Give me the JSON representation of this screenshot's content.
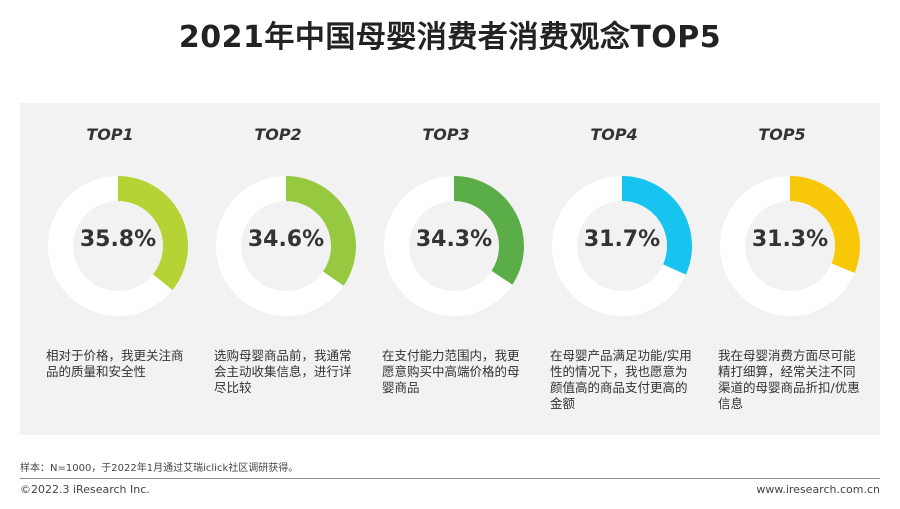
{
  "title": "2021年中国母婴消费者消费观念TOP5",
  "chart_data": {
    "type": "pie",
    "title": "2021年中国母婴消费者消费观念TOP5",
    "items": [
      {
        "rank": "TOP1",
        "value": 35.8,
        "label": "35.8%",
        "color": "#b5d334",
        "description": "相对于价格，我更关注商品的质量和安全性"
      },
      {
        "rank": "TOP2",
        "value": 34.6,
        "label": "34.6%",
        "color": "#96c940",
        "description": "选购母婴商品前，我通常会主动收集信息，进行详尽比较"
      },
      {
        "rank": "TOP3",
        "value": 34.3,
        "label": "34.3%",
        "color": "#5aad47",
        "description": "在支付能力范围内，我更愿意购买中高端价格的母婴商品"
      },
      {
        "rank": "TOP4",
        "value": 31.7,
        "label": "31.7%",
        "color": "#17c4ef",
        "description": "在母婴产品满足功能/实用性的情况下，我也愿意为颜值高的商品支付更高的金额"
      },
      {
        "rank": "TOP5",
        "value": 31.3,
        "label": "31.3%",
        "color": "#f8c808",
        "description": "我在母婴消费方面尽可能精打细算，经常关注不同渠道的母婴商品折扣/优惠信息"
      }
    ]
  },
  "footer": {
    "note": "样本：N=1000，于2022年1月通过艾瑞iclick社区调研获得。",
    "copyright": "©2022.3 iResearch Inc.",
    "site": "www.iresearch.com.cn"
  }
}
